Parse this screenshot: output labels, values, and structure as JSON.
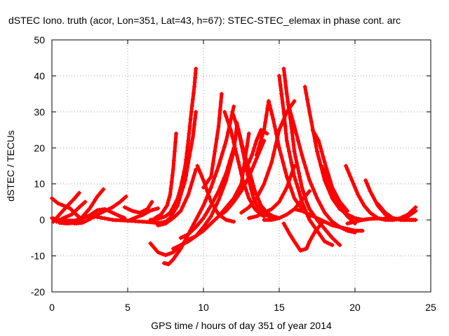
{
  "chart_data": {
    "type": "scatter",
    "title": "dSTEC Iono. truth (acor, Lon=351, Lat=43, h=67): STEC-STEC_elemax in phase cont. arc",
    "xlabel": "GPS time / hours of day 351 of year 2014",
    "ylabel": "dSTEC  / TECUs",
    "xlim": [
      0,
      25
    ],
    "ylim": [
      -20,
      50
    ],
    "xticks": [
      0,
      5,
      10,
      15,
      20,
      25
    ],
    "yticks": [
      -20,
      -10,
      0,
      10,
      20,
      30,
      40,
      50
    ],
    "xtick_labels": [
      "0",
      "5",
      "10",
      "15",
      "20",
      "25"
    ],
    "ytick_labels": [
      "-20",
      "-10",
      "0",
      "10",
      "20",
      "30",
      "40",
      "50"
    ],
    "grid": true,
    "marker": "+",
    "color": "#ff0000",
    "series": [
      {
        "x": [
          0.0,
          0.4,
          0.8,
          1.2,
          1.6,
          2.0
        ],
        "y": [
          6.0,
          4.6,
          3.9,
          3.2,
          1.5,
          0.0
        ]
      },
      {
        "x": [
          0.0,
          0.5,
          1.0,
          1.5,
          2.0,
          2.5,
          3.0,
          3.5,
          4.0,
          4.5,
          4.8
        ],
        "y": [
          0.5,
          0.0,
          -0.2,
          -0.2,
          0.4,
          1.3,
          2.7,
          3.0,
          2.0,
          1.0,
          0.5
        ]
      },
      {
        "x": [
          0.1,
          0.5,
          1.0,
          1.5,
          1.8
        ],
        "y": [
          -0.5,
          1.5,
          3.8,
          6.0,
          7.5
        ]
      },
      {
        "x": [
          0.3,
          0.8,
          1.3,
          1.8,
          2.2
        ],
        "y": [
          -0.5,
          0.6,
          1.5,
          3.5,
          5.0
        ]
      },
      {
        "x": [
          0.5,
          1.0,
          1.5,
          2.0,
          2.5,
          3.0,
          3.4
        ],
        "y": [
          -0.8,
          -1.0,
          -0.8,
          0.8,
          3.2,
          6.5,
          8.5
        ]
      },
      {
        "x": [
          1.5,
          2.0,
          2.5,
          3.0,
          3.5,
          4.0,
          4.5,
          4.9
        ],
        "y": [
          -1.0,
          -0.8,
          0.2,
          1.5,
          2.5,
          3.5,
          5.0,
          6.5
        ]
      },
      {
        "x": [
          2.2,
          3.0,
          4.0,
          5.0,
          6.0,
          7.0,
          7.5
        ],
        "y": [
          1.0,
          0.8,
          0.0,
          -0.2,
          -0.5,
          -0.8,
          -1.0
        ]
      },
      {
        "x": [
          4.8,
          5.3,
          5.8,
          6.3,
          6.6
        ],
        "y": [
          3.5,
          2.5,
          2.0,
          3.0,
          5.0
        ]
      },
      {
        "x": [
          5.0,
          5.5,
          6.0,
          6.5,
          7.0
        ],
        "y": [
          -0.3,
          0.6,
          1.4,
          2.6,
          3.2
        ]
      },
      {
        "x": [
          6.5,
          7.0,
          7.5,
          8.0,
          8.5,
          9.0,
          9.5
        ],
        "y": [
          -6.5,
          -9.0,
          -9.8,
          -9.0,
          -7.0,
          -5.5,
          -4.5
        ]
      },
      {
        "x": [
          6.5,
          7.0,
          7.5,
          7.8,
          8.0,
          8.3,
          8.5,
          8.8,
          9.0,
          9.2,
          9.4,
          9.5
        ],
        "y": [
          0.0,
          0.3,
          1.0,
          2.0,
          3.5,
          6.0,
          9.0,
          15.0,
          22.0,
          30.0,
          37.0,
          42.0
        ]
      },
      {
        "x": [
          6.5,
          7.0,
          7.5,
          7.8,
          8.0,
          8.3,
          8.5,
          8.8,
          9.0,
          9.3,
          9.5
        ],
        "y": [
          -0.6,
          -0.9,
          -0.5,
          0.5,
          2.0,
          4.0,
          7.0,
          11.0,
          16.0,
          23.0,
          30.0
        ]
      },
      {
        "x": [
          6.8,
          7.2,
          7.6,
          7.8,
          8.0,
          8.2
        ],
        "y": [
          0.5,
          1.5,
          4.0,
          7.0,
          14.0,
          24.0
        ]
      },
      {
        "x": [
          7.0,
          7.5,
          8.0,
          8.5,
          9.0,
          9.5
        ],
        "y": [
          -1.5,
          -1.0,
          0.5,
          2.5,
          7.0,
          14.0
        ]
      },
      {
        "x": [
          7.4,
          7.7,
          8.0,
          8.5,
          9.0,
          9.5,
          10.0,
          10.5,
          11.0,
          11.5,
          12.0
        ],
        "y": [
          -12.0,
          -12.3,
          -11.0,
          -8.0,
          -4.0,
          0.0,
          4.0,
          9.0,
          15.0,
          22.0,
          31.5
        ]
      },
      {
        "x": [
          8.0,
          9.0,
          10.0,
          11.0,
          12.0,
          12.5,
          13.0
        ],
        "y": [
          -8.0,
          -6.0,
          -3.0,
          1.0,
          6.0,
          10.0,
          24.0
        ]
      },
      {
        "x": [
          8.5,
          9.0,
          9.5,
          10.0,
          10.5,
          11.0,
          11.5,
          12.0
        ],
        "y": [
          -5.0,
          -4.0,
          -2.0,
          0.5,
          4.0,
          8.0,
          13.0,
          20.0
        ]
      },
      {
        "x": [
          9.5,
          10.0,
          10.5,
          11.0,
          11.5,
          12.0,
          12.2
        ],
        "y": [
          -4.5,
          -2.0,
          1.0,
          5.5,
          11.0,
          19.0,
          26.0
        ]
      },
      {
        "x": [
          9.6,
          10.0,
          10.5,
          11.0,
          11.5,
          12.0
        ],
        "y": [
          15.0,
          11.0,
          5.0,
          1.5,
          0.0,
          -0.5
        ]
      },
      {
        "x": [
          10.0,
          10.5,
          11.0,
          11.2
        ],
        "y": [
          9.0,
          12.0,
          26.0,
          35.0
        ]
      },
      {
        "x": [
          11.0,
          11.5,
          12.0,
          12.5,
          13.0,
          13.5,
          14.0
        ],
        "y": [
          1.0,
          2.5,
          5.0,
          8.0,
          12.0,
          17.0,
          22.0
        ]
      },
      {
        "x": [
          11.4,
          11.8,
          12.2,
          12.6,
          13.0,
          13.4,
          13.8,
          14.0
        ],
        "y": [
          30.0,
          25.0,
          18.0,
          11.0,
          6.0,
          3.0,
          1.5,
          1.0
        ]
      },
      {
        "x": [
          11.9,
          12.3,
          12.7,
          13.0,
          13.3,
          13.6,
          14.0,
          14.5,
          15.0
        ],
        "y": [
          30.0,
          25.0,
          17.0,
          11.0,
          6.0,
          3.5,
          1.5,
          0.8,
          0.5
        ]
      },
      {
        "x": [
          12.2,
          12.6,
          13.0,
          13.4,
          13.8,
          14.2,
          14.6,
          15.0
        ],
        "y": [
          27.0,
          20.0,
          14.0,
          8.0,
          4.0,
          2.0,
          1.0,
          0.5
        ]
      },
      {
        "x": [
          12.5,
          13.0,
          13.5,
          14.0,
          14.5,
          15.0,
          15.5,
          16.0
        ],
        "y": [
          2.0,
          3.5,
          6.0,
          10.0,
          16.0,
          25.0,
          30.0,
          33.0
        ]
      },
      {
        "x": [
          12.8,
          13.2,
          13.5,
          13.8,
          14.2
        ],
        "y": [
          14.0,
          18.0,
          22.0,
          25.0,
          24.0
        ]
      },
      {
        "x": [
          13.0,
          13.5,
          14.0,
          14.5,
          15.0,
          15.5,
          16.0
        ],
        "y": [
          0.5,
          1.0,
          2.0,
          3.0,
          5.0,
          9.0,
          15.0
        ]
      },
      {
        "x": [
          13.5,
          14.0,
          14.3,
          14.6,
          15.0,
          15.5,
          16.0,
          16.5,
          17.0
        ],
        "y": [
          18.0,
          25.0,
          33.0,
          28.0,
          20.0,
          12.0,
          6.0,
          3.0,
          1.0
        ]
      },
      {
        "x": [
          14.0,
          14.5,
          15.0,
          15.5,
          16.0,
          16.5,
          17.0
        ],
        "y": [
          0.0,
          0.0,
          0.5,
          1.5,
          3.0,
          5.5,
          8.0
        ]
      },
      {
        "x": [
          15.0,
          15.3,
          15.5,
          15.8,
          16.0,
          16.3,
          16.5,
          16.8,
          17.0,
          17.5,
          18.0,
          18.5
        ],
        "y": [
          40.0,
          30.0,
          22.0,
          16.0,
          12.0,
          8.0,
          5.0,
          2.0,
          0.0,
          -3.0,
          -6.0,
          -7.0
        ]
      },
      {
        "x": [
          15.3,
          15.5,
          15.8,
          16.0,
          16.3,
          16.5,
          16.8,
          17.0,
          17.5,
          18.0,
          18.5,
          19.0
        ],
        "y": [
          42.0,
          35.0,
          26.0,
          19.0,
          13.0,
          9.0,
          5.0,
          3.0,
          0.0,
          -2.5,
          -5.0,
          -7.0
        ]
      },
      {
        "x": [
          15.6,
          16.0,
          16.5,
          17.0,
          17.5,
          18.0,
          18.5,
          19.0,
          19.5,
          20.0
        ],
        "y": [
          32.0,
          26.0,
          18.0,
          11.0,
          6.0,
          2.0,
          -0.5,
          -2.0,
          -3.0,
          -3.5
        ]
      },
      {
        "x": [
          15.3,
          15.7,
          16.0,
          16.4,
          16.8,
          17.0,
          17.4,
          17.8
        ],
        "y": [
          -1.0,
          -4.0,
          -6.0,
          -8.5,
          -8.0,
          -6.0,
          -3.0,
          -1.0
        ]
      },
      {
        "x": [
          16.0,
          16.5,
          17.0,
          17.5,
          18.0,
          18.5,
          19.0,
          19.5,
          20.0,
          20.5
        ],
        "y": [
          3.0,
          2.5,
          1.5,
          0.5,
          -0.5,
          -1.5,
          -2.0,
          -2.5,
          -3.0,
          -3.0
        ]
      },
      {
        "x": [
          16.7,
          17.0,
          17.5,
          18.0,
          18.5,
          19.0,
          19.5,
          20.0,
          20.5
        ],
        "y": [
          37.0,
          30.0,
          19.0,
          11.0,
          6.0,
          3.0,
          1.5,
          0.5,
          0.0
        ]
      },
      {
        "x": [
          17.2,
          17.6,
          18.0,
          18.5,
          19.0,
          19.5
        ],
        "y": [
          25.0,
          22.0,
          16.0,
          9.0,
          5.0,
          2.5
        ]
      },
      {
        "x": [
          17.8,
          18.2,
          18.6,
          19.0,
          19.5,
          20.0
        ],
        "y": [
          15.0,
          11.0,
          7.0,
          3.5,
          1.0,
          -1.0
        ]
      },
      {
        "x": [
          19.4,
          19.8,
          20.2,
          20.6,
          21.0,
          21.5,
          22.0,
          22.5
        ],
        "y": [
          15.0,
          11.0,
          7.0,
          4.0,
          2.0,
          0.5,
          0.0,
          0.0
        ]
      },
      {
        "x": [
          20.7,
          21.0,
          21.5,
          22.0,
          22.5,
          23.0,
          23.5,
          24.0
        ],
        "y": [
          11.0,
          8.0,
          4.0,
          1.5,
          0.5,
          0.0,
          0.0,
          0.0
        ]
      },
      {
        "x": [
          21.5,
          22.0,
          22.5,
          23.0,
          23.5,
          24.0
        ],
        "y": [
          4.5,
          2.0,
          0.5,
          0.0,
          0.0,
          0.0
        ]
      },
      {
        "x": [
          19.5,
          20.0,
          20.5,
          21.0,
          21.5,
          22.0,
          22.5,
          23.0,
          23.5,
          24.0
        ],
        "y": [
          -1.0,
          -0.5,
          0.0,
          0.3,
          0.4,
          0.2,
          0.0,
          0.5,
          1.5,
          3.5
        ]
      },
      {
        "x": [
          22.0,
          22.5,
          23.0,
          23.5,
          24.0
        ],
        "y": [
          0.5,
          0.0,
          0.3,
          1.0,
          2.5
        ]
      }
    ]
  }
}
